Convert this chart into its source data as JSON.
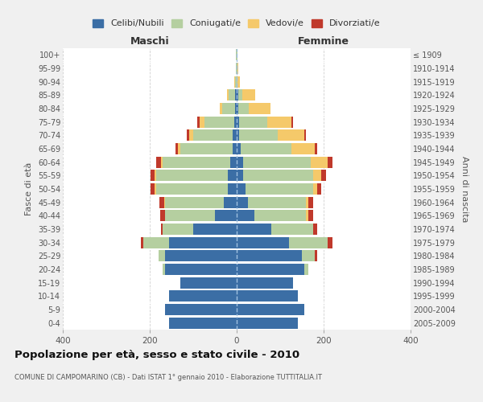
{
  "age_groups": [
    "0-4",
    "5-9",
    "10-14",
    "15-19",
    "20-24",
    "25-29",
    "30-34",
    "35-39",
    "40-44",
    "45-49",
    "50-54",
    "55-59",
    "60-64",
    "65-69",
    "70-74",
    "75-79",
    "80-84",
    "85-89",
    "90-94",
    "95-99",
    "100+"
  ],
  "birth_years": [
    "2005-2009",
    "2000-2004",
    "1995-1999",
    "1990-1994",
    "1985-1989",
    "1980-1984",
    "1975-1979",
    "1970-1974",
    "1965-1969",
    "1960-1964",
    "1955-1959",
    "1950-1954",
    "1945-1949",
    "1940-1944",
    "1935-1939",
    "1930-1934",
    "1925-1929",
    "1920-1924",
    "1915-1919",
    "1910-1914",
    "≤ 1909"
  ],
  "maschi": {
    "celibi": [
      155,
      165,
      155,
      130,
      165,
      165,
      155,
      100,
      50,
      30,
      20,
      20,
      15,
      10,
      10,
      5,
      3,
      3,
      0,
      0,
      0
    ],
    "coniugati": [
      0,
      0,
      0,
      0,
      5,
      15,
      60,
      70,
      115,
      135,
      165,
      165,
      155,
      120,
      90,
      70,
      30,
      15,
      3,
      1,
      1
    ],
    "vedovi": [
      0,
      0,
      0,
      0,
      0,
      0,
      0,
      0,
      0,
      2,
      3,
      3,
      5,
      5,
      10,
      10,
      5,
      5,
      2,
      0,
      0
    ],
    "divorziati": [
      0,
      0,
      0,
      0,
      0,
      0,
      5,
      5,
      10,
      10,
      10,
      10,
      10,
      5,
      5,
      5,
      0,
      0,
      0,
      0,
      0
    ]
  },
  "femmine": {
    "nubili": [
      140,
      155,
      140,
      130,
      155,
      150,
      120,
      80,
      40,
      25,
      20,
      15,
      15,
      10,
      5,
      5,
      3,
      3,
      0,
      0,
      0
    ],
    "coniugate": [
      0,
      0,
      0,
      0,
      10,
      30,
      90,
      95,
      120,
      135,
      155,
      160,
      155,
      115,
      90,
      65,
      25,
      10,
      2,
      1,
      1
    ],
    "vedove": [
      0,
      0,
      0,
      0,
      0,
      0,
      0,
      0,
      5,
      5,
      10,
      20,
      40,
      55,
      60,
      55,
      50,
      30,
      5,
      2,
      0
    ],
    "divorziate": [
      0,
      0,
      0,
      0,
      0,
      5,
      10,
      10,
      10,
      10,
      10,
      10,
      10,
      5,
      5,
      5,
      0,
      0,
      0,
      0,
      0
    ]
  },
  "colors": {
    "celibi_nubili": "#3b6ea5",
    "coniugati": "#b5cfa0",
    "vedovi": "#f5c96a",
    "divorziati": "#c0392b"
  },
  "xlim": [
    -400,
    400
  ],
  "title": "Popolazione per età, sesso e stato civile - 2010",
  "subtitle": "COMUNE DI CAMPOMARINO (CB) - Dati ISTAT 1° gennaio 2010 - Elaborazione TUTTITALIA.IT",
  "ylabel_left": "Fasce di età",
  "ylabel_right": "Anni di nascita",
  "xlabel_maschi": "Maschi",
  "xlabel_femmine": "Femmine",
  "legend_labels": [
    "Celibi/Nubili",
    "Coniugati/e",
    "Vedovi/e",
    "Divorziati/e"
  ],
  "bg_color": "#f0f0f0",
  "plot_bg_color": "#ffffff"
}
